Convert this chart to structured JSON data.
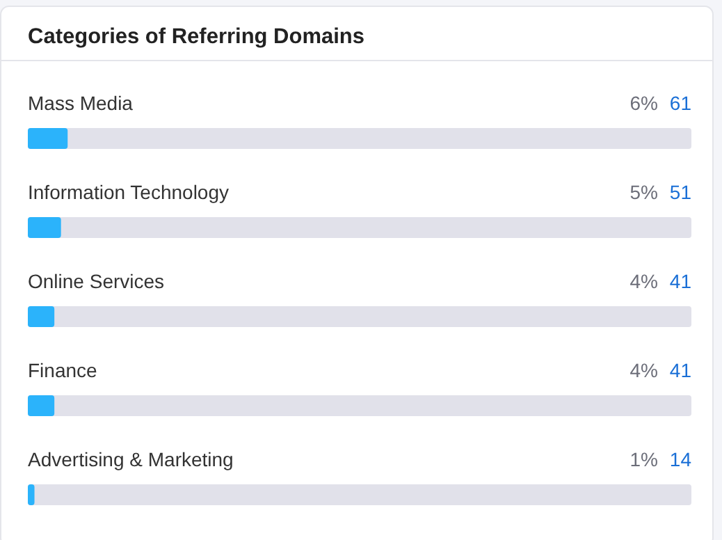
{
  "chart_data": {
    "type": "bar",
    "orientation": "horizontal",
    "title": "Categories of Referring Domains",
    "categories": [
      "Mass Media",
      "Information Technology",
      "Online Services",
      "Finance",
      "Advertising & Marketing"
    ],
    "values": [
      6,
      5,
      4,
      4,
      1
    ],
    "value_labels": [
      "6%",
      "5%",
      "4%",
      "4%",
      "1%"
    ],
    "color": "#2bb3fb",
    "xlim": [
      0,
      100
    ],
    "annotations": [
      "61",
      "51",
      "41",
      "41",
      "14"
    ]
  }
}
